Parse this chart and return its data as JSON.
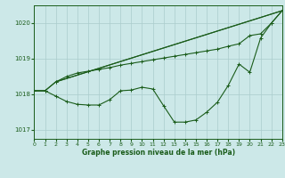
{
  "title": "Graphe pression niveau de la mer (hPa)",
  "background_color": "#cce8e8",
  "grid_color": "#aacccc",
  "line_color": "#1a5c1a",
  "xlim": [
    0,
    23
  ],
  "ylim": [
    1016.75,
    1020.5
  ],
  "yticks": [
    1017,
    1018,
    1019,
    1020
  ],
  "xticks": [
    0,
    1,
    2,
    3,
    4,
    5,
    6,
    7,
    8,
    9,
    10,
    11,
    12,
    13,
    14,
    15,
    16,
    17,
    18,
    19,
    20,
    21,
    22,
    23
  ],
  "series1_x": [
    0,
    1,
    2,
    23
  ],
  "series1_y": [
    1018.1,
    1018.1,
    1018.35,
    1020.35
  ],
  "series2_x": [
    2,
    23
  ],
  "series2_y": [
    1018.35,
    1020.35
  ],
  "series3_x": [
    0,
    1,
    2,
    3,
    4,
    5,
    6,
    7,
    8,
    9,
    10,
    11,
    12,
    13,
    14,
    15,
    16,
    17,
    18,
    19,
    20,
    21,
    22,
    23
  ],
  "series3_y": [
    1018.1,
    1018.1,
    1018.35,
    1018.5,
    1018.6,
    1018.65,
    1018.7,
    1018.75,
    1018.82,
    1018.87,
    1018.92,
    1018.97,
    1019.02,
    1019.07,
    1019.12,
    1019.17,
    1019.22,
    1019.27,
    1019.35,
    1019.42,
    1019.65,
    1019.7,
    1020.0,
    1020.35
  ],
  "series4_x": [
    0,
    1,
    2,
    3,
    4,
    5,
    6,
    7,
    8,
    9,
    10,
    11,
    12,
    13,
    14,
    15,
    16,
    17,
    18,
    19,
    20,
    21,
    22,
    23
  ],
  "series4_y": [
    1018.1,
    1018.1,
    1017.95,
    1017.8,
    1017.72,
    1017.7,
    1017.7,
    1017.85,
    1018.1,
    1018.12,
    1018.2,
    1018.15,
    1017.68,
    1017.22,
    1017.22,
    1017.28,
    1017.5,
    1017.78,
    1018.25,
    1018.85,
    1018.62,
    1019.58,
    1020.0,
    1020.35
  ]
}
